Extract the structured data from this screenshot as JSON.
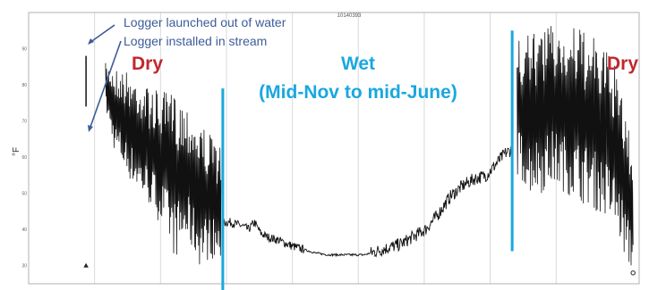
{
  "chart_data": {
    "type": "line",
    "title": "10140393",
    "ylabel": "°F",
    "xlabel": "",
    "grid": true,
    "ylim": [
      25,
      100
    ],
    "y_ticks": [
      {
        "value": 90,
        "label": "90"
      },
      {
        "value": 80,
        "label": "80"
      },
      {
        "value": 70,
        "label": "70"
      },
      {
        "value": 60,
        "label": "60"
      },
      {
        "value": 50,
        "label": "50"
      },
      {
        "value": 40,
        "label": "40"
      },
      {
        "value": 30,
        "label": "30"
      }
    ],
    "x_range": [
      0,
      1
    ],
    "x_grid": [
      0.108,
      0.216,
      0.324,
      0.432,
      0.54,
      0.648,
      0.756,
      0.864
    ],
    "series": [
      {
        "name": "",
        "color": "#111111",
        "envelope": [
          [
            0.126,
            73,
            86
          ],
          [
            0.14,
            62,
            85
          ],
          [
            0.16,
            55,
            84
          ],
          [
            0.18,
            50,
            82
          ],
          [
            0.2,
            46,
            79
          ],
          [
            0.22,
            40,
            78
          ],
          [
            0.24,
            32,
            78
          ],
          [
            0.26,
            36,
            75
          ],
          [
            0.28,
            30,
            70
          ],
          [
            0.3,
            32,
            66
          ],
          [
            0.315,
            30,
            63
          ]
        ],
        "trace": [
          [
            0.318,
            42
          ],
          [
            0.33,
            42
          ],
          [
            0.35,
            41
          ],
          [
            0.36,
            40
          ],
          [
            0.37,
            42
          ],
          [
            0.38,
            39
          ],
          [
            0.39,
            38
          ],
          [
            0.41,
            37
          ],
          [
            0.43,
            35.5
          ],
          [
            0.45,
            34.5
          ],
          [
            0.47,
            33.5
          ],
          [
            0.49,
            33
          ],
          [
            0.51,
            33
          ],
          [
            0.53,
            33
          ],
          [
            0.55,
            33
          ],
          [
            0.57,
            34
          ],
          [
            0.59,
            35
          ],
          [
            0.61,
            36
          ],
          [
            0.63,
            38
          ],
          [
            0.65,
            40
          ],
          [
            0.67,
            44
          ],
          [
            0.69,
            49
          ],
          [
            0.71,
            52
          ],
          [
            0.73,
            54
          ],
          [
            0.75,
            55
          ],
          [
            0.77,
            59
          ],
          [
            0.78,
            61
          ],
          [
            0.79,
            62
          ]
        ],
        "summer_envelope": [
          [
            0.8,
            55,
            92
          ],
          [
            0.82,
            50,
            94
          ],
          [
            0.84,
            50,
            96
          ],
          [
            0.86,
            52,
            97
          ],
          [
            0.88,
            50,
            96
          ],
          [
            0.9,
            48,
            96
          ],
          [
            0.92,
            46,
            94
          ],
          [
            0.94,
            44,
            91
          ],
          [
            0.96,
            40,
            86
          ],
          [
            0.97,
            36,
            78
          ],
          [
            0.98,
            30,
            70
          ],
          [
            0.99,
            28,
            62
          ]
        ]
      }
    ],
    "period_markers": [
      {
        "x": 0.318,
        "y_from": 22,
        "y_to": 79,
        "color": "#1aa7e0"
      },
      {
        "x": 0.792,
        "y_from": 34,
        "y_to": 95,
        "color": "#1aa7e0"
      }
    ],
    "annotations": {
      "arrow_label_1": "Logger launched out of water",
      "arrow_label_2": "Logger installed in stream",
      "label_left": "Dry",
      "label_mid_1": "Wet",
      "label_mid_2": "(Mid-Nov to mid-June)",
      "label_right": "Dry"
    },
    "colors": {
      "dry": "#c0282d",
      "wet": "#1aa7e0",
      "arrow": "#3d5c99",
      "grid": "#d9d9d9",
      "frame": "#b0b0b0"
    }
  }
}
